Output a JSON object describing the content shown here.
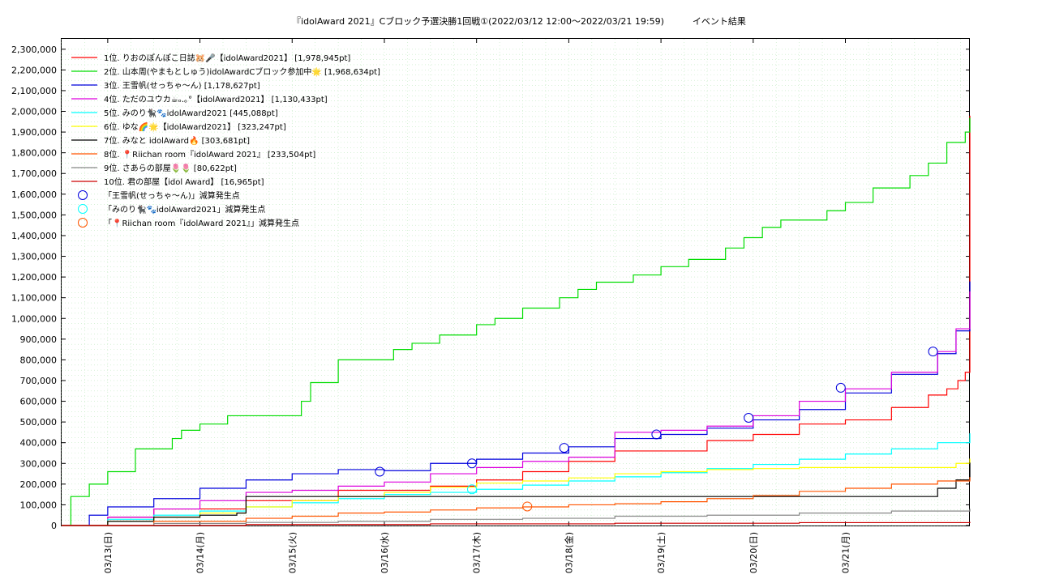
{
  "chart_data": {
    "type": "line",
    "title": "『idolAward 2021』Cブロック予選決勝1回戦①(2022/03/12 12:00～2022/03/21 19:59)",
    "subtitle": "イベント結果",
    "xlabel": "",
    "ylabel": "",
    "x_range": [
      "2022-03-12 12:00",
      "2022-03-21 19:59"
    ],
    "ylim": [
      0,
      2350000
    ],
    "y_ticks": [
      "0",
      "100,000",
      "200,000",
      "300,000",
      "400,000",
      "500,000",
      "600,000",
      "700,000",
      "800,000",
      "900,000",
      "1,000,000",
      "1,100,000",
      "1,200,000",
      "1,300,000",
      "1,400,000",
      "1,500,000",
      "1,600,000",
      "1,700,000",
      "1,800,000",
      "1,900,000",
      "2,000,000",
      "2,100,000",
      "2,200,000",
      "2,300,000"
    ],
    "x_ticks": [
      "03/13(日)",
      "03/14(月)",
      "03/15(火)",
      "03/16(水)",
      "03/17(木)",
      "03/18(金)",
      "03/19(土)",
      "03/20(日)",
      "03/21(月)"
    ],
    "grid": true,
    "legend_position": "top-left",
    "series": [
      {
        "name": "1位. りおのぽんぽこ日誌🐹🎤【idolAward2021】 [1,978,945pt]",
        "color": "#ff0000",
        "x": [
          0,
          0.5,
          1,
          2,
          3,
          4,
          4.5,
          5,
          5.5,
          6,
          7,
          7.5,
          8,
          8.5,
          9,
          9.4,
          9.6,
          9.72,
          9.8,
          9.85
        ],
        "y": [
          0,
          40000,
          80000,
          120000,
          170000,
          190000,
          220000,
          260000,
          310000,
          360000,
          410000,
          440000,
          490000,
          510000,
          570000,
          630000,
          660000,
          700000,
          740000,
          1978945
        ]
      },
      {
        "name": "2位. 山本周(やまもとしゅう)idolAwardCブロック参加中🌟 [1,968,634pt]",
        "color": "#00dd00",
        "x": [
          0,
          0.1,
          0.2,
          0.3,
          0.4,
          0.5,
          0.6,
          0.8,
          0.9,
          1.0,
          1.1,
          1.2,
          1.3,
          1.5,
          1.8,
          2.0,
          2.2,
          2.4,
          2.6,
          2.7,
          3.0,
          3.2,
          3.4,
          3.6,
          3.8,
          4.1,
          4.3,
          4.5,
          4.7,
          5.0,
          5.2,
          5.4,
          5.6,
          5.8,
          6.0,
          6.2,
          6.5,
          6.8,
          7.0,
          7.2,
          7.4,
          7.6,
          7.8,
          8.1,
          8.3,
          8.5,
          8.8,
          9.0,
          9.2,
          9.4,
          9.6,
          9.8,
          9.85
        ],
        "y": [
          0,
          140000,
          140000,
          200000,
          200000,
          260000,
          260000,
          370000,
          370000,
          370000,
          370000,
          420000,
          460000,
          490000,
          530000,
          530000,
          530000,
          530000,
          600000,
          690000,
          800000,
          800000,
          800000,
          850000,
          880000,
          920000,
          920000,
          970000,
          1000000,
          1050000,
          1050000,
          1100000,
          1140000,
          1175000,
          1175000,
          1210000,
          1250000,
          1285000,
          1285000,
          1340000,
          1390000,
          1440000,
          1475000,
          1475000,
          1520000,
          1560000,
          1630000,
          1630000,
          1690000,
          1750000,
          1850000,
          1900000,
          1968634
        ]
      },
      {
        "name": "3位. 王雪帆(せっちゃ〜ん) [1,178,627pt]",
        "color": "#0000dd",
        "x": [
          0,
          0.3,
          0.5,
          1,
          1.5,
          2,
          2.5,
          3,
          3.5,
          4,
          4.5,
          5,
          5.5,
          6,
          6.5,
          7,
          7.5,
          8,
          8.5,
          9,
          9.5,
          9.7,
          9.85
        ],
        "y": [
          0,
          50000,
          90000,
          130000,
          180000,
          220000,
          250000,
          270000,
          265000,
          300000,
          320000,
          350000,
          380000,
          420000,
          440000,
          470000,
          510000,
          560000,
          640000,
          730000,
          830000,
          940000,
          1178627
        ]
      },
      {
        "name": "4位. ただのユウカ☕ₒ.｡°【idolAward2021】 [1,130,433pt]",
        "color": "#dd00dd",
        "x": [
          0,
          0.5,
          1,
          1.5,
          2,
          2.5,
          3,
          3.5,
          4,
          4.5,
          5,
          5.5,
          6,
          6.5,
          7,
          7.5,
          8,
          8.5,
          9,
          9.5,
          9.7,
          9.85
        ],
        "y": [
          0,
          40000,
          80000,
          120000,
          160000,
          170000,
          190000,
          210000,
          250000,
          280000,
          310000,
          330000,
          450000,
          460000,
          480000,
          530000,
          600000,
          660000,
          740000,
          840000,
          950000,
          1130433
        ]
      },
      {
        "name": "5位. みのり🐈‍⬛🐾idolAward2021 [445,088pt]",
        "color": "#00ffff",
        "x": [
          0,
          0.5,
          1,
          1.5,
          2,
          2.5,
          3,
          3.5,
          4,
          4.5,
          5,
          5.5,
          6,
          6.5,
          7,
          7.5,
          8,
          8.5,
          9,
          9.5,
          9.85
        ],
        "y": [
          0,
          30000,
          50000,
          70000,
          90000,
          110000,
          130000,
          150000,
          160000,
          175000,
          195000,
          215000,
          235000,
          255000,
          275000,
          295000,
          320000,
          345000,
          370000,
          400000,
          445088
        ]
      },
      {
        "name": "6位. ゆな🌈🌟【idolAward2021】 [323,247pt]",
        "color": "#ffff00",
        "x": [
          0,
          0.5,
          1,
          1.5,
          2,
          2.5,
          3,
          3.5,
          4,
          4.5,
          5,
          5.5,
          6,
          6.5,
          7,
          7.5,
          8,
          8.5,
          9,
          9.5,
          9.7,
          9.85
        ],
        "y": [
          0,
          20000,
          40000,
          60000,
          90000,
          120000,
          140000,
          160000,
          185000,
          205000,
          215000,
          230000,
          250000,
          260000,
          270000,
          275000,
          280000,
          280000,
          280000,
          280000,
          300000,
          323247
        ]
      },
      {
        "name": "7位. みなと idolAward🔥 [303,681pt]",
        "color": "#000000",
        "x": [
          0,
          0.5,
          1,
          1.5,
          1.9,
          2.0,
          2.5,
          3,
          4,
          5,
          6,
          7,
          8,
          9,
          9.2,
          9.5,
          9.7,
          9.85
        ],
        "y": [
          0,
          20000,
          40000,
          50000,
          60000,
          140000,
          140000,
          140000,
          140000,
          140000,
          140000,
          140000,
          140000,
          140000,
          140000,
          180000,
          220000,
          303681
        ]
      },
      {
        "name": "8位. 📍Riichan room『idolAward 2021』 [233,504pt]",
        "color": "#ff5500",
        "x": [
          0,
          1,
          2,
          2.5,
          3,
          3.5,
          4,
          4.5,
          5,
          5.5,
          6,
          6.5,
          7,
          7.5,
          8,
          8.5,
          9,
          9.5,
          9.85
        ],
        "y": [
          0,
          20000,
          35000,
          45000,
          60000,
          65000,
          75000,
          85000,
          90000,
          100000,
          105000,
          115000,
          130000,
          145000,
          165000,
          180000,
          200000,
          215000,
          233504
        ]
      },
      {
        "name": "9位. さあらの部屋🌷🌷 [80,622pt]",
        "color": "#888888",
        "x": [
          0,
          1,
          2,
          3,
          4,
          5,
          6,
          7,
          8,
          9,
          9.85
        ],
        "y": [
          0,
          10000,
          15000,
          20000,
          30000,
          35000,
          45000,
          50000,
          60000,
          70000,
          80622
        ]
      },
      {
        "name": "10位. 君の部屋【idol Award】 [16,965pt]",
        "color": "#cc0000",
        "x": [
          0,
          2,
          4,
          6,
          8,
          9.85
        ],
        "y": [
          0,
          5000,
          8000,
          11000,
          14000,
          16965
        ]
      }
    ],
    "markers": [
      {
        "name": "「王雪帆(せっちゃ〜ん)」減算発生点",
        "color": "#0000dd",
        "x": [
          3.45,
          4.45,
          5.45,
          6.45,
          7.45,
          8.45,
          9.45
        ],
        "y": [
          260000,
          300000,
          375000,
          440000,
          520000,
          665000,
          840000
        ]
      },
      {
        "name": "「みのり🐈‍⬛🐾idolAward2021」減算発生点",
        "color": "#00ffff",
        "x": [
          4.45
        ],
        "y": [
          175000
        ]
      },
      {
        "name": "「📍Riichan room『idolAward 2021』」減算発生点",
        "color": "#ff5500",
        "x": [
          5.05
        ],
        "y": [
          92000
        ]
      }
    ]
  }
}
